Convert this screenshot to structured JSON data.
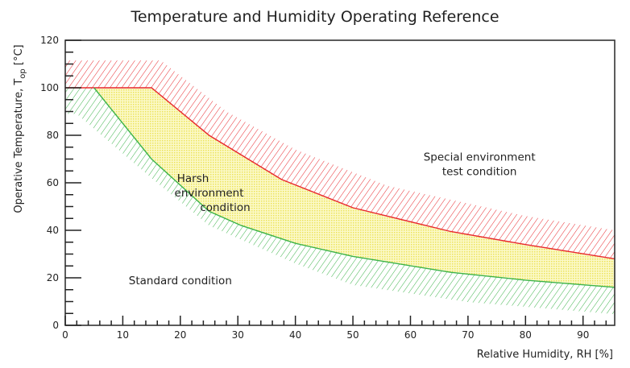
{
  "chart_data": {
    "type": "area",
    "title": "Temperature and Humidity Operating Reference",
    "xlabel": "Relative Humidity, RH [%]",
    "ylabel_main": "Operative Temperature, T",
    "ylabel_sub": "op",
    "ylabel_unit": " [°C]",
    "xlim": [
      0,
      95.5
    ],
    "ylim": [
      0,
      120
    ],
    "x_ticks": [
      0,
      10,
      20,
      30,
      40,
      50,
      60,
      70,
      80,
      90
    ],
    "y_ticks": [
      0,
      20,
      40,
      60,
      80,
      100,
      120
    ],
    "grid": false,
    "series": [
      {
        "name": "Harsh environment upper limit",
        "color": "#e8282d",
        "points": [
          [
            0,
            100
          ],
          [
            15,
            100
          ],
          [
            25,
            80
          ],
          [
            37.6,
            61.4
          ],
          [
            50,
            49.5
          ],
          [
            67,
            39.5
          ],
          [
            80,
            34
          ],
          [
            95.5,
            28
          ]
        ]
      },
      {
        "name": "Standard condition upper limit",
        "color": "#3cb34a",
        "points": [
          [
            5,
            100
          ],
          [
            15,
            70
          ],
          [
            25,
            48
          ],
          [
            30.6,
            42
          ],
          [
            40,
            34.5
          ],
          [
            50,
            29
          ],
          [
            67,
            22.3
          ],
          [
            80,
            19
          ],
          [
            95.5,
            16
          ]
        ]
      },
      {
        "name": "Special environment hatch boundary",
        "color": "#e8282d",
        "points": [
          [
            0,
            111.5
          ],
          [
            16.6,
            111.5
          ],
          [
            28,
            90
          ],
          [
            40,
            74
          ],
          [
            56,
            58.7
          ],
          [
            80,
            46
          ],
          [
            95.5,
            40
          ]
        ]
      },
      {
        "name": "Standard hatch boundary",
        "color": "#3cb34a",
        "points": [
          [
            0,
            89
          ],
          [
            2,
            89
          ],
          [
            15,
            62
          ],
          [
            25,
            42
          ],
          [
            40,
            26
          ],
          [
            50,
            17
          ],
          [
            70,
            9.8
          ],
          [
            95.5,
            4.7
          ]
        ]
      }
    ],
    "fill_color": "#f2ec5a",
    "annotations": [
      {
        "lines": [
          "Special environment",
          "test condition"
        ],
        "x": 72,
        "y": 68
      },
      {
        "lines": [
          "Harsh",
          "environment",
          "condition"
        ],
        "x": 25,
        "y": 56
      },
      {
        "lines": [
          "Standard condition"
        ],
        "x": 20,
        "y": 19
      }
    ]
  }
}
